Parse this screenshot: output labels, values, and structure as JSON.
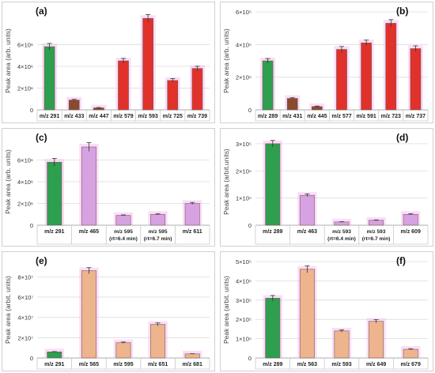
{
  "colors": {
    "green": "#2e9e4f",
    "red": "#e0322b",
    "brown": "#8a4a2e",
    "violet": "#d7a2e2",
    "peach": "#eeb48d",
    "halo": "#f3b3f0"
  },
  "chart_data": [
    {
      "panel": "(a)",
      "type": "bar",
      "categories": [
        "m/z 291",
        "m/z 433",
        "m/z 447",
        "m/z 579",
        "m/z 593",
        "m/z 725",
        "m/z 739"
      ],
      "values": [
        5800000,
        900000,
        180000,
        4500000,
        8400000,
        2700000,
        3800000
      ],
      "errors": [
        300000,
        60000,
        30000,
        220000,
        350000,
        160000,
        200000
      ],
      "bar_colors": [
        "green",
        "brown",
        "brown",
        "red",
        "red",
        "red",
        "red"
      ],
      "ylabel": "Peak area (arb. units)",
      "ylim": [
        0,
        9000000
      ],
      "yticks": [
        0,
        2000000,
        4000000,
        6000000
      ],
      "ytick_labels": [
        "0",
        "2×10⁶",
        "4×10⁶",
        "6×10⁶"
      ]
    },
    {
      "panel": "(b)",
      "type": "bar",
      "categories": [
        "m/z 289",
        "m/z 431",
        "m/z 445",
        "m/z 577",
        "m/z 591",
        "m/z 723",
        "m/z 737"
      ],
      "values": [
        300000,
        70000,
        20000,
        370000,
        410000,
        530000,
        375000
      ],
      "errors": [
        14000,
        4000,
        3000,
        18000,
        17000,
        22000,
        17000
      ],
      "bar_colors": [
        "green",
        "brown",
        "brown",
        "red",
        "red",
        "red",
        "red"
      ],
      "ylabel": "Peak area (arb. units)",
      "ylim": [
        0,
        600000
      ],
      "yticks": [
        0,
        200000,
        400000,
        600000
      ],
      "ytick_labels": [
        "0",
        "2×10⁵",
        "4×10⁵",
        "6×10⁵"
      ]
    },
    {
      "panel": "(c)",
      "type": "bar",
      "categories": [
        "m/z 291",
        "m/z 465",
        "m/z 595\n(rt=6.4 min)",
        "m/z 595\n(rt=6.7 min)",
        "m/z 611"
      ],
      "values": [
        5800000,
        7200000,
        900000,
        1000000,
        2000000
      ],
      "errors": [
        350000,
        400000,
        50000,
        50000,
        100000
      ],
      "bar_colors": [
        "green",
        "violet",
        "violet",
        "violet",
        "violet"
      ],
      "ylabel": "Peak area (arb. units)",
      "ylim": [
        0,
        8000000
      ],
      "yticks": [
        0,
        2000000,
        4000000,
        6000000
      ],
      "ytick_labels": [
        "0",
        "2×10⁶",
        "4×10⁶",
        "6×10⁶"
      ]
    },
    {
      "panel": "(d)",
      "type": "bar",
      "categories": [
        "m/z 289",
        "m/z 463",
        "m/z 593\n(rt=6.4 min)",
        "m/z 593\n(rt=6.7 min)",
        "m/z 609"
      ],
      "values": [
        300000,
        110000,
        12000,
        18000,
        40000
      ],
      "errors": [
        12000,
        5000,
        1000,
        1500,
        2000
      ],
      "bar_colors": [
        "green",
        "violet",
        "violet",
        "violet",
        "violet"
      ],
      "ylabel": "Peak area (arbit.units)",
      "ylim": [
        0,
        320000
      ],
      "yticks": [
        0,
        100000,
        200000,
        300000
      ],
      "ytick_labels": [
        "0",
        "1×10⁵",
        "2×10⁵",
        "3×10⁵"
      ]
    },
    {
      "panel": "(e)",
      "type": "bar",
      "categories": [
        "m/z 291",
        "m/z 565",
        "m/z 595",
        "m/z 651",
        "m/z 681"
      ],
      "values": [
        6000000,
        86000000,
        15000000,
        33000000,
        4000000
      ],
      "errors": [
        300000,
        3000000,
        700000,
        1500000,
        200000
      ],
      "bar_colors": [
        "green",
        "peach",
        "peach",
        "peach",
        "peach"
      ],
      "ylabel": "Peak area (arbit. units)",
      "ylim": [
        0,
        95000000
      ],
      "yticks": [
        0,
        20000000,
        40000000,
        60000000,
        80000000
      ],
      "ytick_labels": [
        "0",
        "2×10⁷",
        "4×10⁷",
        "6×10⁷",
        "8×10⁷"
      ]
    },
    {
      "panel": "(f)",
      "type": "bar",
      "categories": [
        "m/z 289",
        "m/z 563",
        "m/z 593",
        "m/z 649",
        "m/z 679"
      ],
      "values": [
        310000,
        460000,
        140000,
        190000,
        45000
      ],
      "errors": [
        14000,
        18000,
        6000,
        9000,
        3000
      ],
      "bar_colors": [
        "green",
        "peach",
        "peach",
        "peach",
        "peach"
      ],
      "ylabel": "Peak area (arbit. units)",
      "ylim": [
        0,
        500000
      ],
      "yticks": [
        0,
        100000,
        200000,
        300000,
        400000,
        500000
      ],
      "ytick_labels": [
        "0",
        "1×10⁵",
        "2×10⁵",
        "3×10⁵",
        "4×10⁵",
        "5×10⁵"
      ]
    }
  ]
}
